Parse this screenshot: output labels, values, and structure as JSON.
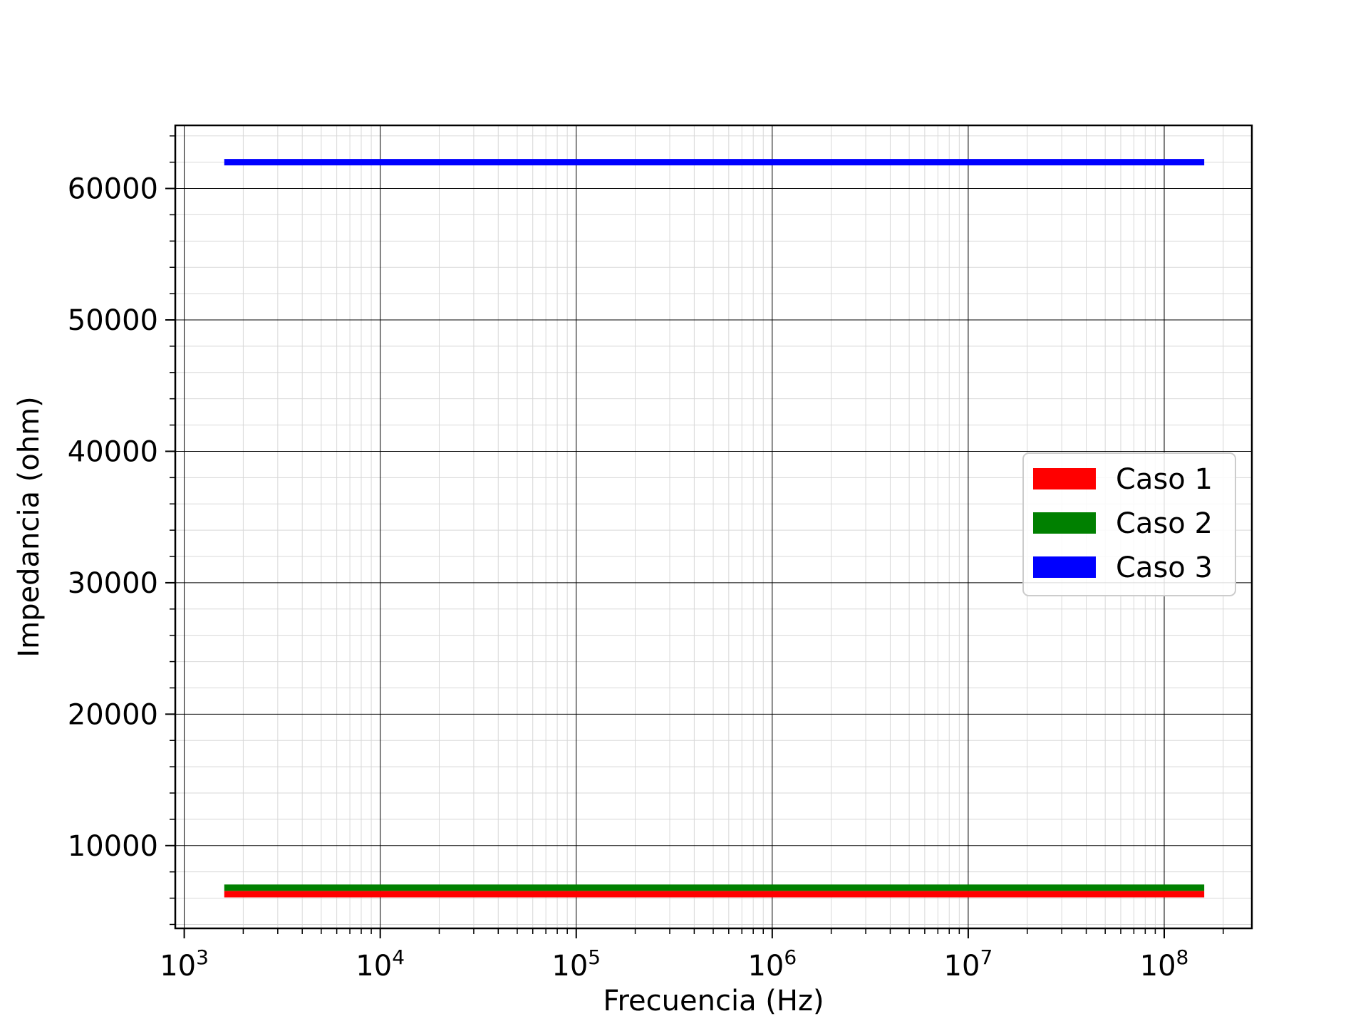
{
  "chart_data": {
    "type": "line",
    "title": "",
    "xlabel": "Frecuencia (Hz)",
    "ylabel": "Impedancia (ohm)",
    "xscale": "log",
    "xlim": [
      900,
      280000000
    ],
    "ylim": [
      3700,
      64800
    ],
    "x_tick_base": "10",
    "x_ticks": [
      {
        "value": 1000,
        "exp": "3"
      },
      {
        "value": 10000,
        "exp": "4"
      },
      {
        "value": 100000,
        "exp": "5"
      },
      {
        "value": 1000000,
        "exp": "6"
      },
      {
        "value": 10000000,
        "exp": "7"
      },
      {
        "value": 100000000,
        "exp": "8"
      }
    ],
    "y_ticks": [
      {
        "value": 10000,
        "label": "10000"
      },
      {
        "value": 20000,
        "label": "20000"
      },
      {
        "value": 30000,
        "label": "30000"
      },
      {
        "value": 40000,
        "label": "40000"
      },
      {
        "value": 50000,
        "label": "50000"
      },
      {
        "value": 60000,
        "label": "60000"
      }
    ],
    "grid": "major and minor",
    "legend_position": "center-right",
    "series": [
      {
        "name": "Caso 1",
        "color": "#ff0000",
        "x": [
          1600,
          160000000
        ],
        "y": [
          6300,
          6300
        ]
      },
      {
        "name": "Caso 2",
        "color": "#008000",
        "x": [
          1600,
          160000000
        ],
        "y": [
          6800,
          6800
        ]
      },
      {
        "name": "Caso 3",
        "color": "#0000ff",
        "x": [
          1600,
          160000000
        ],
        "y": [
          62000,
          62000
        ]
      }
    ]
  }
}
